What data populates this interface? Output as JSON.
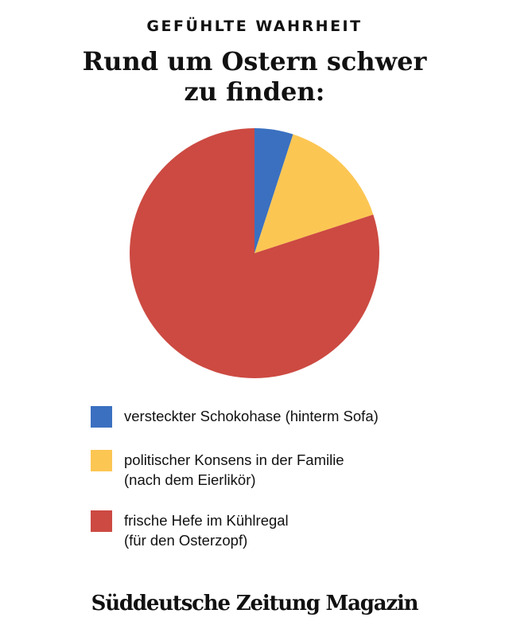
{
  "header": {
    "kicker": "GEFÜHLTE WAHRHEIT",
    "title_line1": "Rund um Ostern schwer",
    "title_line2": "zu finden:"
  },
  "chart_data": {
    "type": "pie",
    "title": "Rund um Ostern schwer zu finden:",
    "start_angle_deg": 0,
    "direction": "clockwise",
    "slices": [
      {
        "label": "versteckter Schokohase (hinterm Sofa)",
        "value": 5,
        "color": "#3b70c0"
      },
      {
        "label": "politischer Konsens in der Familie (nach dem Eierlikör)",
        "value": 15,
        "color": "#fcc653"
      },
      {
        "label": "frische Hefe im Kühlregal (für den Osterzopf)",
        "value": 80,
        "color": "#cc4a42"
      }
    ]
  },
  "legend": [
    {
      "lines": [
        "versteckter Schokohase (hinterm Sofa)"
      ],
      "color": "#3b70c0"
    },
    {
      "lines": [
        "politischer Konsens in der Familie",
        "(nach dem Eierlikör)"
      ],
      "color": "#fcc653"
    },
    {
      "lines": [
        "frische Hefe im Kühlregal",
        "(für den Osterzopf)"
      ],
      "color": "#cc4a42"
    }
  ],
  "footer": {
    "brand": "Süddeutsche Zeitung Magazin"
  }
}
